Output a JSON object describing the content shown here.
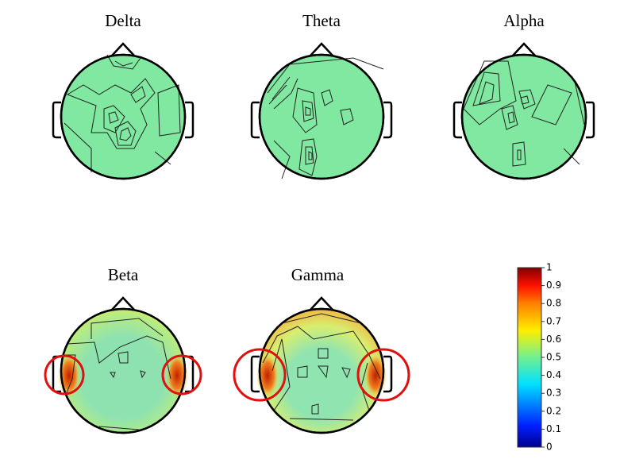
{
  "panels": [
    {
      "title": "Delta"
    },
    {
      "title": "Theta"
    },
    {
      "title": "Alpha"
    },
    {
      "title": "Beta"
    },
    {
      "title": "Gamma"
    }
  ],
  "colorbar": {
    "range": [
      0,
      1
    ],
    "ticks": [
      0,
      0.1,
      0.2,
      0.3,
      0.4,
      0.5,
      0.6,
      0.7,
      0.8,
      0.9,
      1
    ]
  }
}
